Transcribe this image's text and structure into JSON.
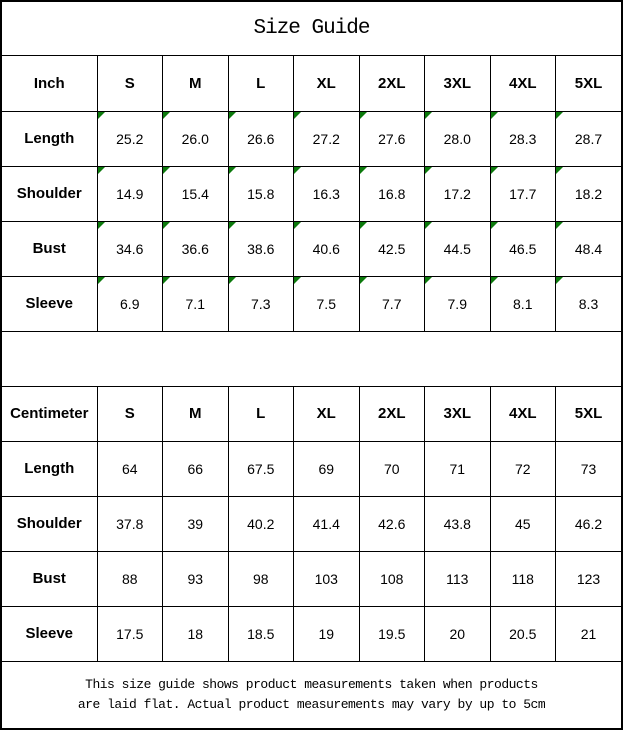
{
  "title": "Size Guide",
  "sizes": [
    "S",
    "M",
    "L",
    "XL",
    "2XL",
    "3XL",
    "4XL",
    "5XL"
  ],
  "inch_table": {
    "unit_label": "Inch",
    "has_corner_markers": true,
    "rows": [
      {
        "label": "Length",
        "values": [
          "25.2",
          "26.0",
          "26.6",
          "27.2",
          "27.6",
          "28.0",
          "28.3",
          "28.7"
        ]
      },
      {
        "label": "Shoulder",
        "values": [
          "14.9",
          "15.4",
          "15.8",
          "16.3",
          "16.8",
          "17.2",
          "17.7",
          "18.2"
        ]
      },
      {
        "label": "Bust",
        "values": [
          "34.6",
          "36.6",
          "38.6",
          "40.6",
          "42.5",
          "44.5",
          "46.5",
          "48.4"
        ]
      },
      {
        "label": "Sleeve",
        "values": [
          "6.9",
          "7.1",
          "7.3",
          "7.5",
          "7.7",
          "7.9",
          "8.1",
          "8.3"
        ]
      }
    ]
  },
  "cm_table": {
    "unit_label": "Centimeter",
    "has_corner_markers": false,
    "rows": [
      {
        "label": "Length",
        "values": [
          "64",
          "66",
          "67.5",
          "69",
          "70",
          "71",
          "72",
          "73"
        ]
      },
      {
        "label": "Shoulder",
        "values": [
          "37.8",
          "39",
          "40.2",
          "41.4",
          "42.6",
          "43.8",
          "45",
          "46.2"
        ]
      },
      {
        "label": "Bust",
        "values": [
          "88",
          "93",
          "98",
          "103",
          "108",
          "113",
          "118",
          "123"
        ]
      },
      {
        "label": "Sleeve",
        "values": [
          "17.5",
          "18",
          "18.5",
          "19",
          "19.5",
          "20",
          "20.5",
          "21"
        ]
      }
    ]
  },
  "footer": {
    "line1": "This size guide shows product measurements taken when products",
    "line2": "are laid flat. Actual product measurements may vary by up to 5cm"
  },
  "colors": {
    "border": "#000000",
    "background": "#ffffff",
    "text": "#000000",
    "corner_marker": "#0c7a0c"
  }
}
